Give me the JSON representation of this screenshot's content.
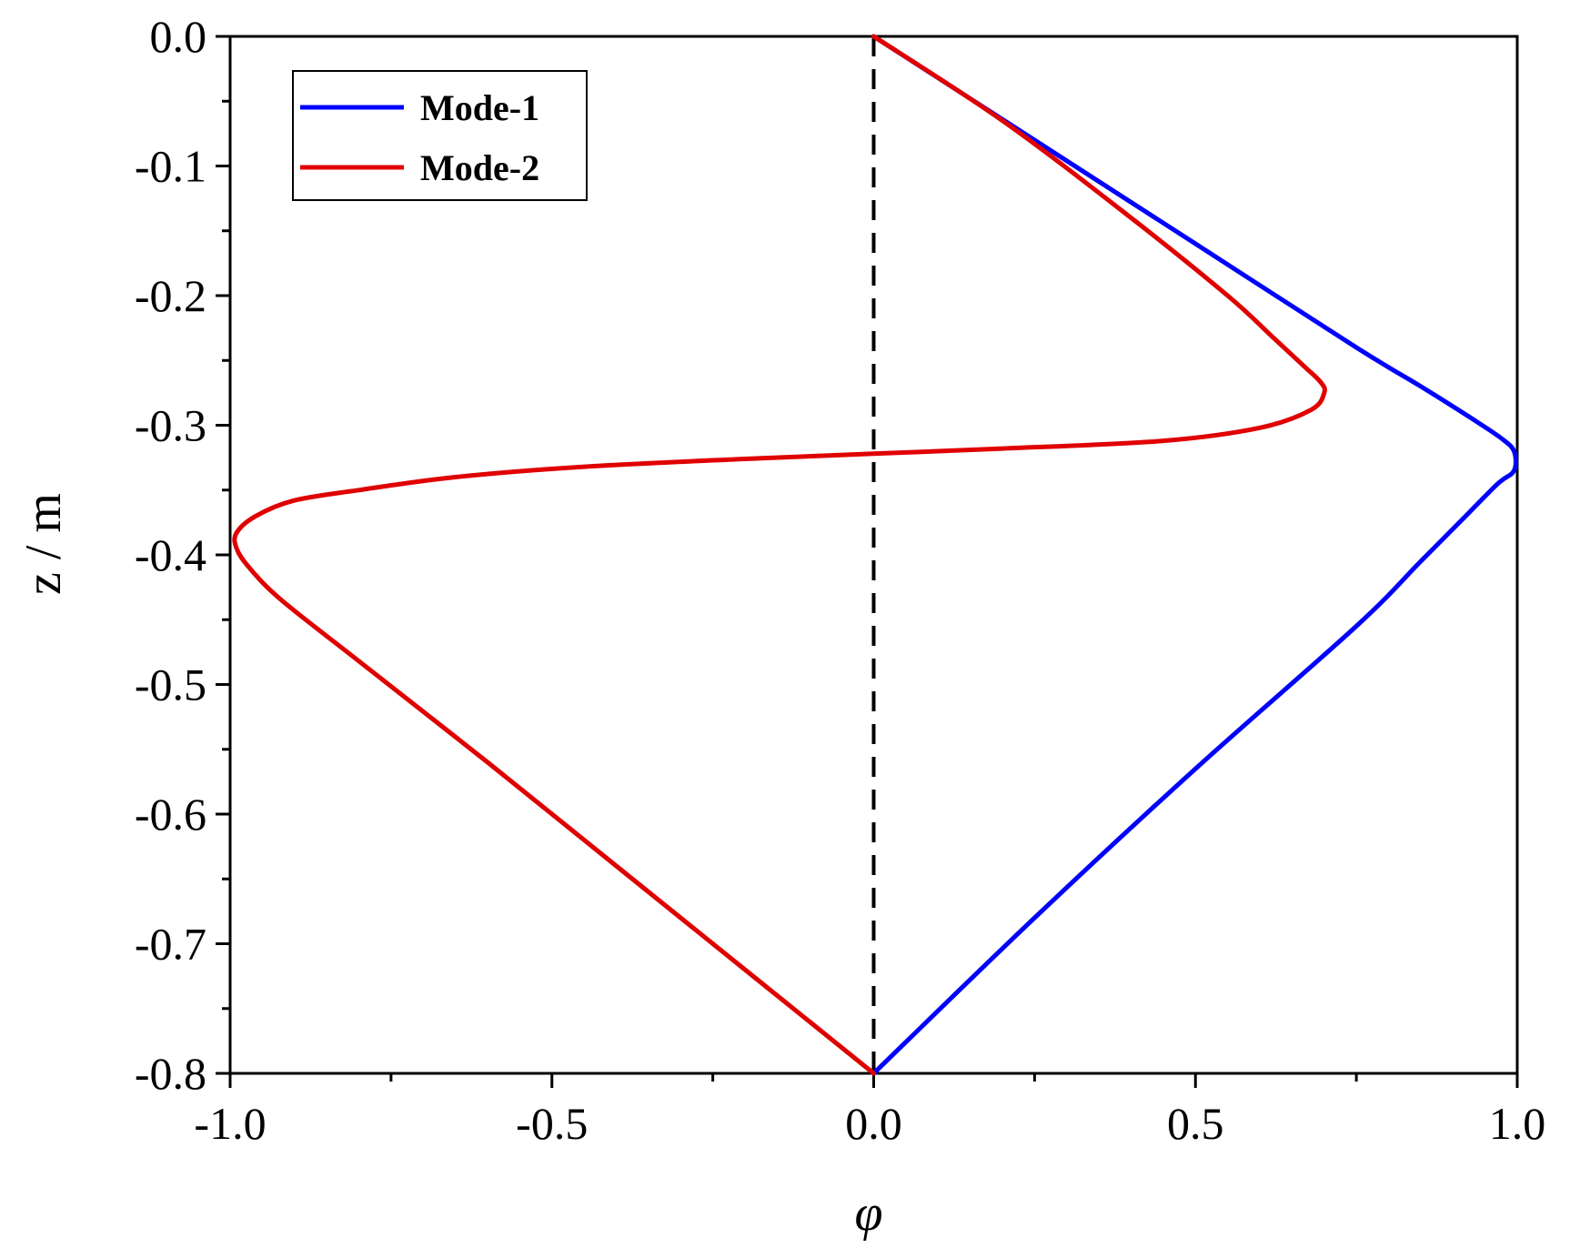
{
  "chart_data": {
    "type": "line",
    "title": "",
    "xlabel": "φ",
    "ylabel": "z / m",
    "xlim": [
      -1.0,
      1.0
    ],
    "ylim": [
      -0.8,
      0.0
    ],
    "x_ticks": [
      "-1.0",
      "-0.5",
      "0.0",
      "0.5",
      "1.0"
    ],
    "y_ticks": [
      "0.0",
      "-0.1",
      "-0.2",
      "-0.3",
      "-0.4",
      "-0.5",
      "-0.6",
      "-0.7",
      "-0.8"
    ],
    "grid": false,
    "legend_position": "top-left",
    "reference_line": {
      "x": 0.0,
      "style": "dashed",
      "color": "#000000"
    },
    "series": [
      {
        "name": "Mode-1",
        "color": "#0000ff",
        "points": [
          [
            0.0,
            0.0
          ],
          [
            0.25,
            -0.08
          ],
          [
            0.5,
            -0.16
          ],
          [
            0.75,
            -0.24
          ],
          [
            0.85,
            -0.27
          ],
          [
            0.93,
            -0.295
          ],
          [
            0.975,
            -0.31
          ],
          [
            0.995,
            -0.32
          ],
          [
            0.995,
            -0.335
          ],
          [
            0.97,
            -0.345
          ],
          [
            0.92,
            -0.37
          ],
          [
            0.85,
            -0.405
          ],
          [
            0.75,
            -0.455
          ],
          [
            0.5,
            -0.565
          ],
          [
            0.25,
            -0.68
          ],
          [
            0.0,
            -0.8
          ]
        ]
      },
      {
        "name": "Mode-2",
        "color": "#e00000",
        "points": [
          [
            0.0,
            0.0
          ],
          [
            0.2,
            -0.065
          ],
          [
            0.4,
            -0.14
          ],
          [
            0.55,
            -0.2
          ],
          [
            0.62,
            -0.232
          ],
          [
            0.67,
            -0.255
          ],
          [
            0.695,
            -0.267
          ],
          [
            0.7,
            -0.275
          ],
          [
            0.68,
            -0.288
          ],
          [
            0.6,
            -0.302
          ],
          [
            0.45,
            -0.312
          ],
          [
            0.2,
            -0.318
          ],
          [
            0.0,
            -0.322
          ],
          [
            -0.2,
            -0.326
          ],
          [
            -0.45,
            -0.332
          ],
          [
            -0.65,
            -0.34
          ],
          [
            -0.8,
            -0.35
          ],
          [
            -0.9,
            -0.358
          ],
          [
            -0.96,
            -0.37
          ],
          [
            -0.99,
            -0.383
          ],
          [
            -0.99,
            -0.395
          ],
          [
            -0.97,
            -0.41
          ],
          [
            -0.92,
            -0.435
          ],
          [
            -0.8,
            -0.482
          ],
          [
            -0.6,
            -0.56
          ],
          [
            -0.4,
            -0.64
          ],
          [
            -0.2,
            -0.72
          ],
          [
            0.0,
            -0.8
          ]
        ]
      }
    ]
  }
}
